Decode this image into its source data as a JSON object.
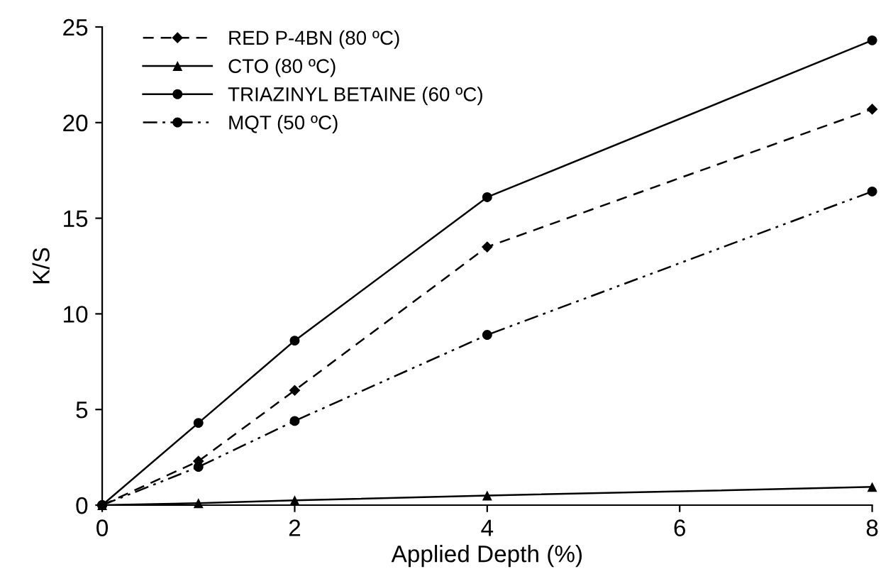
{
  "chart_data": {
    "type": "line",
    "xlabel": "Applied Depth (%)",
    "ylabel": "K/S",
    "x": [
      0,
      1,
      2,
      4,
      8
    ],
    "series": [
      {
        "name": "RED P-4BN (80 ºC)",
        "color": "#000000",
        "marker": "diamond",
        "line_style": "dashed",
        "values": [
          0,
          2.3,
          6.0,
          13.5,
          20.7
        ]
      },
      {
        "name": "CTO (80 ºC)",
        "color": "#000000",
        "marker": "triangle",
        "line_style": "solid",
        "values": [
          0,
          0.1,
          0.25,
          0.5,
          0.95
        ]
      },
      {
        "name": "TRIAZINYL BETAINE (60 ºC)",
        "color": "#000000",
        "marker": "circle",
        "line_style": "solid",
        "values": [
          0,
          4.3,
          8.6,
          16.1,
          24.3
        ]
      },
      {
        "name": "MQT (50 ºC)",
        "color": "#000000",
        "marker": "circle",
        "line_style": "dashdot",
        "values": [
          0,
          2.0,
          4.4,
          8.9,
          16.4
        ]
      }
    ],
    "xlim": [
      0,
      8
    ],
    "xticks": [
      0,
      2,
      4,
      6,
      8
    ],
    "ylim": [
      0,
      25
    ],
    "yticks": [
      0,
      5,
      10,
      15,
      20,
      25
    ],
    "grid": false,
    "legend": "top left"
  }
}
